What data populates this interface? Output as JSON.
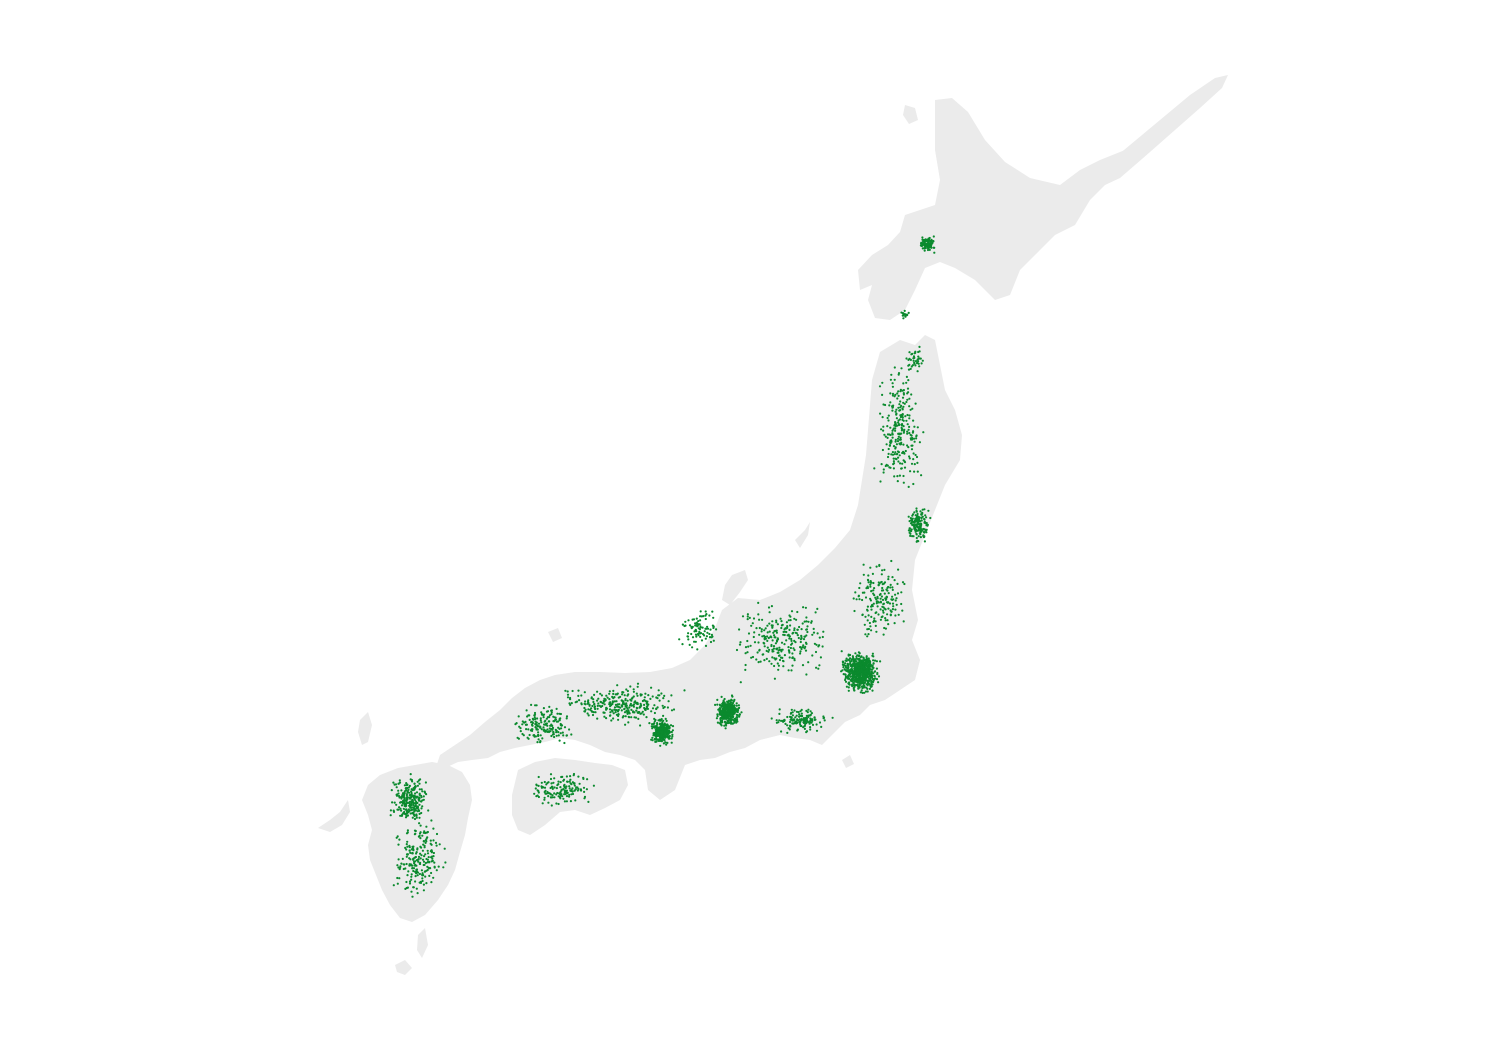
{
  "map": {
    "colors": {
      "background": "#ffffff",
      "land": "#ebebeb",
      "points": "#0b8a2e"
    },
    "regions": [
      "hokkaido-island",
      "honshu-island",
      "shikoku-island",
      "kyushu-island"
    ],
    "clusters": [
      {
        "name": "tokyo-cluster"
      },
      {
        "name": "nagoya-cluster"
      },
      {
        "name": "osaka-cluster"
      },
      {
        "name": "sendai-cluster"
      },
      {
        "name": "fukuoka-cluster"
      },
      {
        "name": "sapporo-cluster"
      }
    ]
  }
}
